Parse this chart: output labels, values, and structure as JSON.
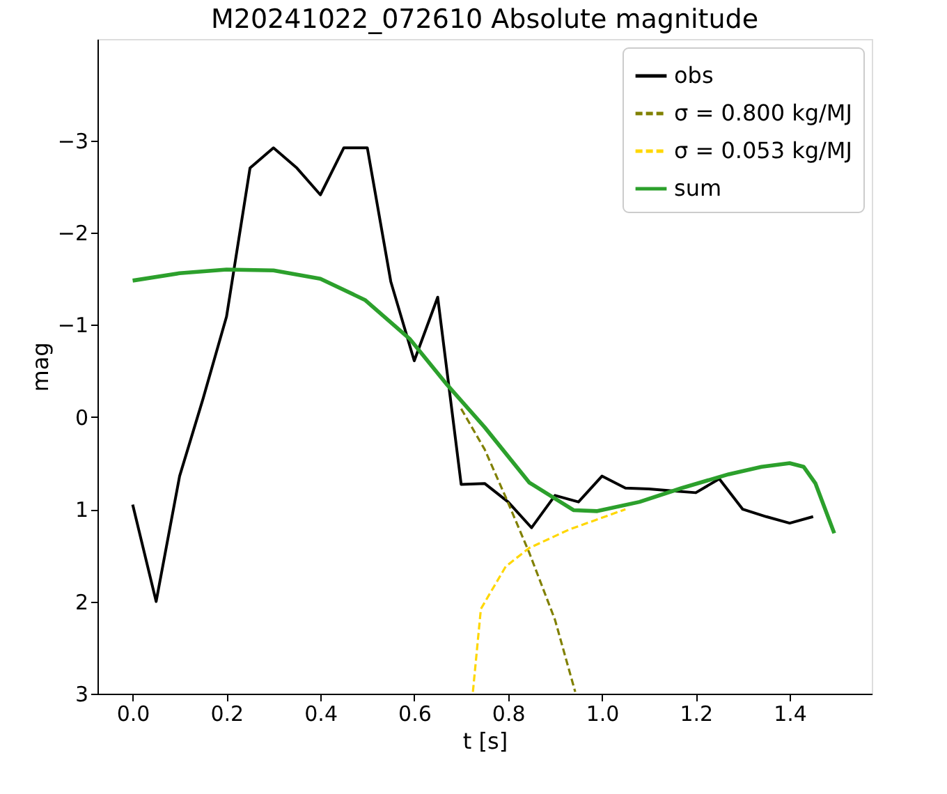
{
  "chart_data": {
    "type": "line",
    "title": "M20241022_072610 Absolute magnitude",
    "xlabel": "t [s]",
    "ylabel": "mag",
    "xlim": [
      -0.075,
      1.575
    ],
    "xticks": [
      {
        "value": 0,
        "label": "0.0"
      },
      {
        "value": 0.2,
        "label": "0.2"
      },
      {
        "value": 0.4,
        "label": "0.4"
      },
      {
        "value": 0.6,
        "label": "0.6"
      },
      {
        "value": 0.8,
        "label": "0.8"
      },
      {
        "value": 1.0,
        "label": "1.0"
      },
      {
        "value": 1.2,
        "label": "1.2"
      },
      {
        "value": 1.4,
        "label": "1.4"
      }
    ],
    "ylim": [
      3,
      -4.1
    ],
    "yticks": [
      {
        "value": -3,
        "label": "−3"
      },
      {
        "value": -2,
        "label": "−2"
      },
      {
        "value": -1,
        "label": "−1"
      },
      0,
      1,
      2,
      3
    ],
    "grid": false,
    "legend": "top right",
    "marker": "none",
    "series": [
      {
        "name": "obs",
        "color": "#000000",
        "line_style": "solid",
        "x": [
          0,
          0.05,
          0.1,
          0.15,
          0.2,
          0.25,
          0.3,
          0.35,
          0.4,
          0.45,
          0.5,
          0.55,
          0.6,
          0.65,
          0.7,
          0.75,
          0.8,
          0.85,
          0.9,
          0.95,
          1.0,
          1.05,
          1.1,
          1.15,
          1.2,
          1.25,
          1.3,
          1.35,
          1.4,
          1.45
        ],
        "values": [
          0.95,
          2.0,
          0.64,
          -0.2,
          -1.09,
          -2.7,
          -2.92,
          -2.7,
          -2.41,
          -2.92,
          -2.92,
          -1.47,
          -0.61,
          -1.3,
          0.73,
          0.72,
          0.92,
          1.2,
          0.85,
          0.92,
          0.64,
          0.77,
          0.78,
          0.8,
          0.82,
          0.67,
          1.0,
          1.08,
          1.15,
          1.08
        ]
      },
      {
        "name": "σ = 0.800 kg/MJ",
        "color": "#808000",
        "line_style": "dashed",
        "x": [
          0.7,
          0.75,
          0.795,
          0.845,
          0.9,
          0.943
        ],
        "values": [
          -0.09,
          0.35,
          0.87,
          1.47,
          2.2,
          2.98
        ]
      },
      {
        "name": "σ = 0.053 kg/MJ",
        "color": "#ffd700",
        "line_style": "dashed",
        "x": [
          0.725,
          0.742,
          0.795,
          0.845,
          0.93,
          1.05
        ],
        "values": [
          2.98,
          2.08,
          1.62,
          1.42,
          1.22,
          1.0
        ]
      },
      {
        "name": "sum",
        "color": "#2ca02c",
        "line_style": "solid",
        "x": [
          0,
          0.1,
          0.2,
          0.3,
          0.4,
          0.495,
          0.59,
          0.67,
          0.75,
          0.845,
          0.94,
          0.99,
          1.08,
          1.17,
          1.27,
          1.34,
          1.4,
          1.43,
          1.455,
          1.495
        ],
        "values": [
          -1.48,
          -1.56,
          -1.6,
          -1.59,
          -1.5,
          -1.27,
          -0.85,
          -0.35,
          0.11,
          0.71,
          1.01,
          1.02,
          0.92,
          0.77,
          0.62,
          0.54,
          0.5,
          0.54,
          0.72,
          1.26
        ]
      }
    ]
  }
}
